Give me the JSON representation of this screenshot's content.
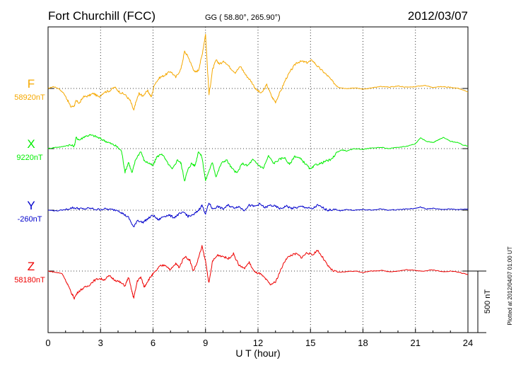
{
  "header": {
    "station": "Fort Churchill (FCC)",
    "coords": "GG ( 58.80°, 265.90°)",
    "date": "2012/03/07"
  },
  "footer": {
    "plotted": "Plotted at 2012/04/07 01:00 UT"
  },
  "scale_bar_label": "500 nT",
  "chart_data": {
    "type": "line",
    "xlabel": "U T (hour)",
    "xlim": [
      0,
      24
    ],
    "x_ticks": [
      0,
      3,
      6,
      9,
      12,
      15,
      18,
      21,
      24
    ],
    "grid": true,
    "scale_bar_nT": 500,
    "series": [
      {
        "name": "F",
        "baseline_label": "58920nT",
        "baseline": 58920,
        "color": "#f5a800",
        "points": [
          [
            0,
            58920
          ],
          [
            0.3,
            58935
          ],
          [
            0.6,
            58920
          ],
          [
            0.9,
            58880
          ],
          [
            1.1,
            58830
          ],
          [
            1.3,
            58770
          ],
          [
            1.5,
            58780
          ],
          [
            1.6,
            58820
          ],
          [
            1.8,
            58800
          ],
          [
            2.0,
            58850
          ],
          [
            2.3,
            58860
          ],
          [
            2.6,
            58880
          ],
          [
            2.9,
            58850
          ],
          [
            3.2,
            58890
          ],
          [
            3.5,
            58900
          ],
          [
            3.8,
            58930
          ],
          [
            4.1,
            58890
          ],
          [
            4.4,
            58870
          ],
          [
            4.7,
            58820
          ],
          [
            4.9,
            58740
          ],
          [
            5.0,
            58800
          ],
          [
            5.2,
            58880
          ],
          [
            5.4,
            58860
          ],
          [
            5.7,
            58900
          ],
          [
            5.9,
            58850
          ],
          [
            6.1,
            58960
          ],
          [
            6.4,
            59010
          ],
          [
            6.7,
            59030
          ],
          [
            7.0,
            59060
          ],
          [
            7.3,
            59010
          ],
          [
            7.6,
            59080
          ],
          [
            7.8,
            59220
          ],
          [
            8.0,
            59180
          ],
          [
            8.2,
            59110
          ],
          [
            8.4,
            59050
          ],
          [
            8.6,
            59070
          ],
          [
            8.8,
            59190
          ],
          [
            9.0,
            59360
          ],
          [
            9.2,
            58870
          ],
          [
            9.4,
            59070
          ],
          [
            9.6,
            59150
          ],
          [
            9.8,
            59120
          ],
          [
            10.1,
            59140
          ],
          [
            10.4,
            59090
          ],
          [
            10.7,
            59050
          ],
          [
            11.0,
            59100
          ],
          [
            11.3,
            59030
          ],
          [
            11.6,
            58980
          ],
          [
            11.9,
            58910
          ],
          [
            12.2,
            58880
          ],
          [
            12.5,
            58950
          ],
          [
            12.8,
            58850
          ],
          [
            13.0,
            58810
          ],
          [
            13.3,
            58900
          ],
          [
            13.6,
            59000
          ],
          [
            13.9,
            59070
          ],
          [
            14.2,
            59130
          ],
          [
            14.5,
            59140
          ],
          [
            14.8,
            59130
          ],
          [
            15.1,
            59150
          ],
          [
            15.4,
            59100
          ],
          [
            15.7,
            59060
          ],
          [
            16.0,
            59020
          ],
          [
            16.3,
            58970
          ],
          [
            16.6,
            58930
          ],
          [
            17.0,
            58920
          ],
          [
            17.5,
            58925
          ],
          [
            18.0,
            58915
          ],
          [
            18.5,
            58925
          ],
          [
            19.0,
            58935
          ],
          [
            19.5,
            58930
          ],
          [
            20.0,
            58940
          ],
          [
            20.5,
            58930
          ],
          [
            21.0,
            58935
          ],
          [
            21.5,
            58945
          ],
          [
            22.0,
            58930
          ],
          [
            22.5,
            58935
          ],
          [
            23.0,
            58930
          ],
          [
            23.5,
            58920
          ],
          [
            24.0,
            58890
          ]
        ]
      },
      {
        "name": "X",
        "baseline_label": "9220nT",
        "baseline": 9220,
        "color": "#00ee00",
        "points": [
          [
            0,
            9220
          ],
          [
            0.4,
            9230
          ],
          [
            0.8,
            9235
          ],
          [
            1.2,
            9250
          ],
          [
            1.5,
            9240
          ],
          [
            1.6,
            9310
          ],
          [
            1.8,
            9290
          ],
          [
            2.1,
            9320
          ],
          [
            2.4,
            9330
          ],
          [
            2.7,
            9320
          ],
          [
            3.0,
            9300
          ],
          [
            3.3,
            9280
          ],
          [
            3.6,
            9260
          ],
          [
            3.9,
            9240
          ],
          [
            4.2,
            9200
          ],
          [
            4.4,
            9030
          ],
          [
            4.6,
            9110
          ],
          [
            4.8,
            9020
          ],
          [
            5.0,
            9130
          ],
          [
            5.3,
            9200
          ],
          [
            5.5,
            9120
          ],
          [
            5.8,
            9100
          ],
          [
            6.0,
            9080
          ],
          [
            6.2,
            9150
          ],
          [
            6.5,
            9180
          ],
          [
            6.8,
            9110
          ],
          [
            7.1,
            9050
          ],
          [
            7.4,
            9130
          ],
          [
            7.6,
            9100
          ],
          [
            7.8,
            8960
          ],
          [
            8.0,
            9050
          ],
          [
            8.2,
            9100
          ],
          [
            8.4,
            9080
          ],
          [
            8.6,
            9200
          ],
          [
            8.8,
            9150
          ],
          [
            9.0,
            8960
          ],
          [
            9.2,
            9040
          ],
          [
            9.4,
            9110
          ],
          [
            9.6,
            8990
          ],
          [
            9.9,
            9100
          ],
          [
            10.2,
            9130
          ],
          [
            10.5,
            9060
          ],
          [
            10.8,
            9020
          ],
          [
            11.1,
            9100
          ],
          [
            11.4,
            9080
          ],
          [
            11.7,
            9130
          ],
          [
            12.0,
            9090
          ],
          [
            12.3,
            9060
          ],
          [
            12.6,
            9160
          ],
          [
            12.9,
            9100
          ],
          [
            13.2,
            9130
          ],
          [
            13.5,
            9150
          ],
          [
            13.8,
            9090
          ],
          [
            14.1,
            9160
          ],
          [
            14.4,
            9140
          ],
          [
            14.7,
            9100
          ],
          [
            15.0,
            9050
          ],
          [
            15.3,
            9090
          ],
          [
            15.6,
            9100
          ],
          [
            15.9,
            9120
          ],
          [
            16.2,
            9130
          ],
          [
            16.5,
            9190
          ],
          [
            16.8,
            9210
          ],
          [
            17.1,
            9200
          ],
          [
            17.5,
            9220
          ],
          [
            18.0,
            9215
          ],
          [
            18.5,
            9225
          ],
          [
            19.0,
            9230
          ],
          [
            19.5,
            9220
          ],
          [
            20.0,
            9230
          ],
          [
            20.5,
            9240
          ],
          [
            21.0,
            9260
          ],
          [
            21.3,
            9310
          ],
          [
            21.6,
            9280
          ],
          [
            22.0,
            9270
          ],
          [
            22.3,
            9290
          ],
          [
            22.6,
            9310
          ],
          [
            23.0,
            9280
          ],
          [
            23.4,
            9270
          ],
          [
            23.7,
            9250
          ],
          [
            24.0,
            9240
          ]
        ]
      },
      {
        "name": "Y",
        "baseline_label": "-260nT",
        "baseline": -260,
        "color": "#0000cc",
        "points": [
          [
            0,
            -260
          ],
          [
            0.5,
            -265
          ],
          [
            1.0,
            -255
          ],
          [
            1.4,
            -240
          ],
          [
            1.7,
            -245
          ],
          [
            2.0,
            -250
          ],
          [
            2.4,
            -245
          ],
          [
            2.8,
            -255
          ],
          [
            3.2,
            -250
          ],
          [
            3.6,
            -255
          ],
          [
            4.0,
            -260
          ],
          [
            4.3,
            -290
          ],
          [
            4.6,
            -320
          ],
          [
            4.9,
            -400
          ],
          [
            5.1,
            -340
          ],
          [
            5.4,
            -360
          ],
          [
            5.7,
            -330
          ],
          [
            6.0,
            -300
          ],
          [
            6.3,
            -340
          ],
          [
            6.6,
            -310
          ],
          [
            6.9,
            -300
          ],
          [
            7.2,
            -320
          ],
          [
            7.5,
            -290
          ],
          [
            7.8,
            -280
          ],
          [
            8.0,
            -310
          ],
          [
            8.3,
            -300
          ],
          [
            8.6,
            -260
          ],
          [
            8.8,
            -220
          ],
          [
            9.0,
            -290
          ],
          [
            9.2,
            -200
          ],
          [
            9.4,
            -250
          ],
          [
            9.7,
            -230
          ],
          [
            10.0,
            -250
          ],
          [
            10.3,
            -220
          ],
          [
            10.6,
            -240
          ],
          [
            10.9,
            -230
          ],
          [
            11.2,
            -260
          ],
          [
            11.5,
            -220
          ],
          [
            11.8,
            -230
          ],
          [
            12.1,
            -210
          ],
          [
            12.4,
            -240
          ],
          [
            12.7,
            -220
          ],
          [
            13.0,
            -230
          ],
          [
            13.3,
            -250
          ],
          [
            13.6,
            -225
          ],
          [
            13.9,
            -245
          ],
          [
            14.2,
            -240
          ],
          [
            14.5,
            -230
          ],
          [
            14.8,
            -240
          ],
          [
            15.1,
            -250
          ],
          [
            15.4,
            -220
          ],
          [
            15.7,
            -240
          ],
          [
            16.0,
            -260
          ],
          [
            16.3,
            -255
          ],
          [
            16.7,
            -265
          ],
          [
            17.0,
            -255
          ],
          [
            17.5,
            -260
          ],
          [
            18.0,
            -255
          ],
          [
            18.5,
            -260
          ],
          [
            19.0,
            -250
          ],
          [
            19.5,
            -260
          ],
          [
            20.0,
            -255
          ],
          [
            20.5,
            -250
          ],
          [
            21.0,
            -245
          ],
          [
            21.3,
            -235
          ],
          [
            21.6,
            -250
          ],
          [
            22.0,
            -245
          ],
          [
            22.5,
            -255
          ],
          [
            23.0,
            -250
          ],
          [
            23.5,
            -255
          ],
          [
            24.0,
            -250
          ]
        ]
      },
      {
        "name": "Z",
        "baseline_label": "58180nT",
        "baseline": 58180,
        "color": "#ee0000",
        "points": [
          [
            0,
            58180
          ],
          [
            0.4,
            58170
          ],
          [
            0.8,
            58160
          ],
          [
            1.1,
            58080
          ],
          [
            1.3,
            58010
          ],
          [
            1.5,
            57960
          ],
          [
            1.7,
            58010
          ],
          [
            2.0,
            58040
          ],
          [
            2.3,
            58060
          ],
          [
            2.6,
            58100
          ],
          [
            2.9,
            58120
          ],
          [
            3.2,
            58110
          ],
          [
            3.5,
            58140
          ],
          [
            3.8,
            58110
          ],
          [
            4.1,
            58090
          ],
          [
            4.4,
            58060
          ],
          [
            4.6,
            58130
          ],
          [
            4.8,
            58010
          ],
          [
            4.9,
            57960
          ],
          [
            5.1,
            58100
          ],
          [
            5.3,
            58130
          ],
          [
            5.5,
            58050
          ],
          [
            5.7,
            58100
          ],
          [
            5.9,
            58140
          ],
          [
            6.1,
            58170
          ],
          [
            6.4,
            58220
          ],
          [
            6.7,
            58230
          ],
          [
            7.0,
            58190
          ],
          [
            7.3,
            58240
          ],
          [
            7.5,
            58210
          ],
          [
            7.8,
            58300
          ],
          [
            8.1,
            58270
          ],
          [
            8.3,
            58180
          ],
          [
            8.5,
            58240
          ],
          [
            8.8,
            58380
          ],
          [
            9.0,
            58260
          ],
          [
            9.2,
            58080
          ],
          [
            9.4,
            58260
          ],
          [
            9.7,
            58310
          ],
          [
            10.0,
            58300
          ],
          [
            10.3,
            58280
          ],
          [
            10.6,
            58320
          ],
          [
            10.9,
            58230
          ],
          [
            11.2,
            58200
          ],
          [
            11.5,
            58250
          ],
          [
            11.8,
            58170
          ],
          [
            12.1,
            58160
          ],
          [
            12.4,
            58120
          ],
          [
            12.7,
            58070
          ],
          [
            13.0,
            58090
          ],
          [
            13.3,
            58190
          ],
          [
            13.6,
            58280
          ],
          [
            13.9,
            58310
          ],
          [
            14.2,
            58320
          ],
          [
            14.5,
            58290
          ],
          [
            14.8,
            58330
          ],
          [
            15.1,
            58310
          ],
          [
            15.4,
            58350
          ],
          [
            15.7,
            58290
          ],
          [
            16.0,
            58220
          ],
          [
            16.3,
            58180
          ],
          [
            16.6,
            58170
          ],
          [
            17.0,
            58175
          ],
          [
            17.5,
            58180
          ],
          [
            18.0,
            58170
          ],
          [
            18.5,
            58180
          ],
          [
            19.0,
            58185
          ],
          [
            19.5,
            58175
          ],
          [
            20.0,
            58180
          ],
          [
            20.5,
            58190
          ],
          [
            21.0,
            58185
          ],
          [
            21.5,
            58180
          ],
          [
            22.0,
            58190
          ],
          [
            22.5,
            58175
          ],
          [
            23.0,
            58180
          ],
          [
            23.5,
            58170
          ],
          [
            24.0,
            58150
          ]
        ]
      }
    ]
  }
}
